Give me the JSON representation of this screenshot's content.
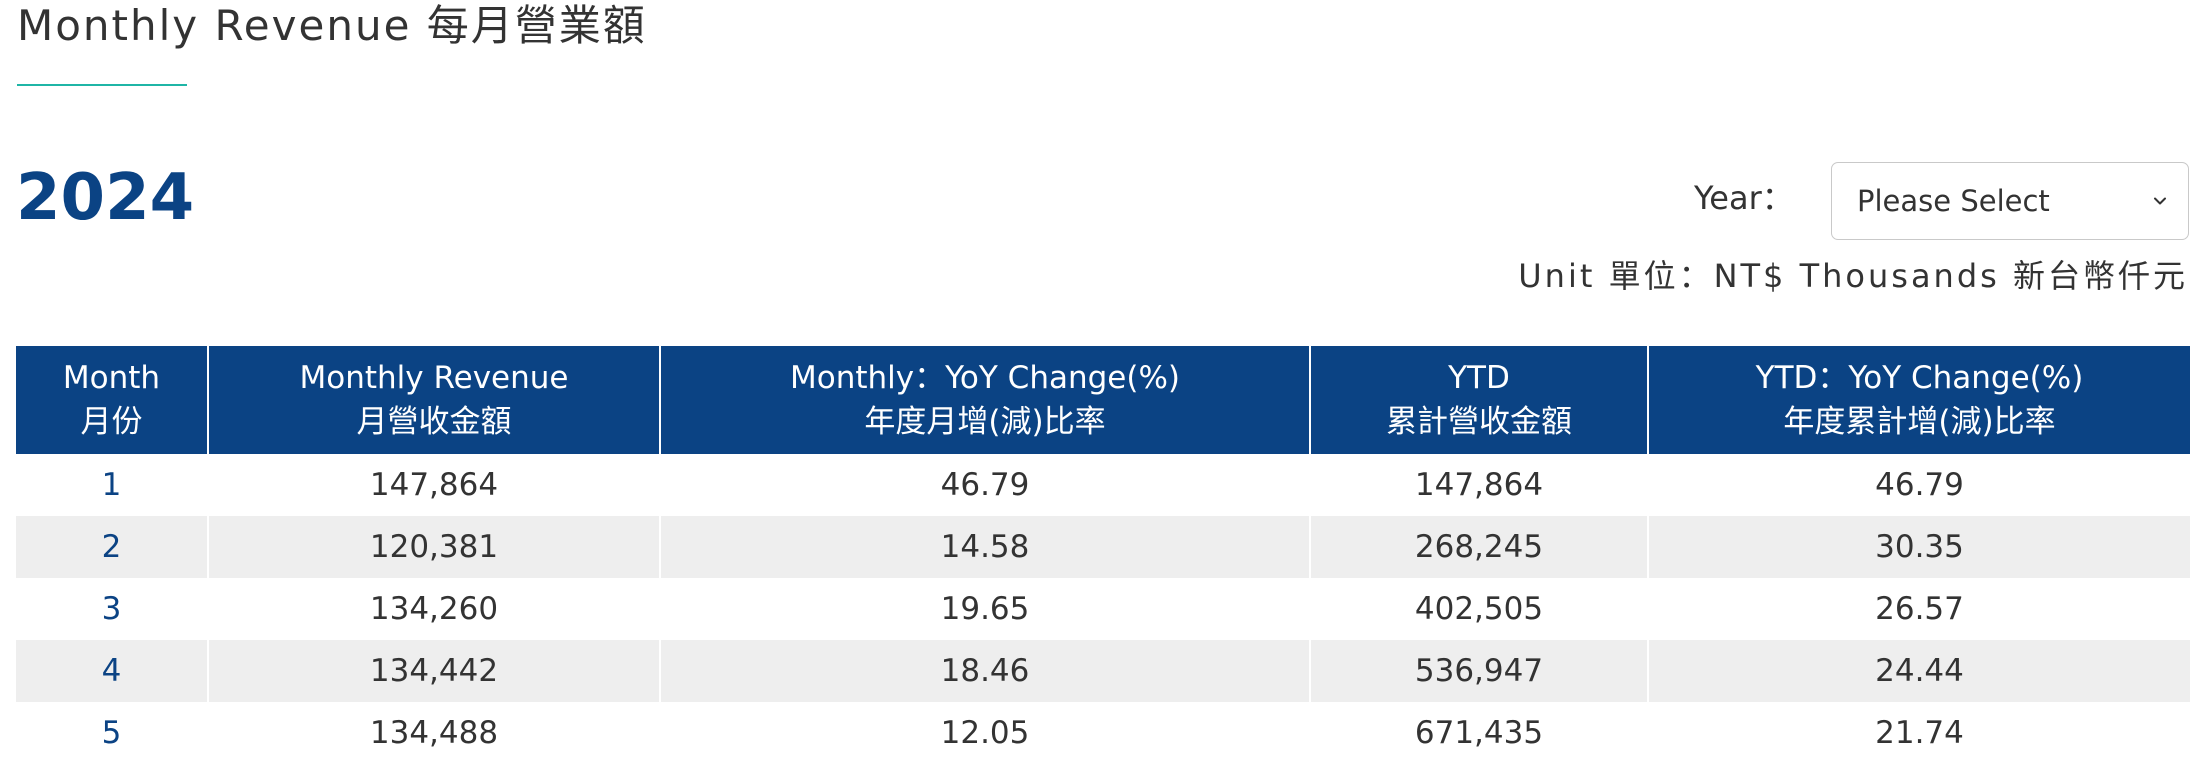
{
  "page": {
    "title": "Monthly Revenue 每月營業額",
    "year": "2024"
  },
  "filter": {
    "year_label": "Year：",
    "year_select_value": "Please Select",
    "chevron_icon": "chevron-down-icon"
  },
  "unit_note": "Unit 單位：NT$ Thousands 新台幣仟元",
  "colors": {
    "header_bg": "#0b4384",
    "accent_underline": "#1fb5a6",
    "stripe_bg": "#eeeeee",
    "year_text": "#0b4384"
  },
  "table": {
    "headers": [
      {
        "en": "Month",
        "zh": "月份"
      },
      {
        "en": "Monthly Revenue",
        "zh": "月營收金額"
      },
      {
        "en": "Monthly：YoY Change(%)",
        "zh": "年度月增(減)比率"
      },
      {
        "en": "YTD",
        "zh": "累計營收金額"
      },
      {
        "en": "YTD：YoY Change(%)",
        "zh": "年度累計增(減)比率"
      }
    ],
    "rows": [
      {
        "month": "1",
        "revenue": "147,864",
        "monthly_yoy": "46.79",
        "ytd": "147,864",
        "ytd_yoy": "46.79"
      },
      {
        "month": "2",
        "revenue": "120,381",
        "monthly_yoy": "14.58",
        "ytd": "268,245",
        "ytd_yoy": "30.35"
      },
      {
        "month": "3",
        "revenue": "134,260",
        "monthly_yoy": "19.65",
        "ytd": "402,505",
        "ytd_yoy": "26.57"
      },
      {
        "month": "4",
        "revenue": "134,442",
        "monthly_yoy": "18.46",
        "ytd": "536,947",
        "ytd_yoy": "24.44"
      },
      {
        "month": "5",
        "revenue": "134,488",
        "monthly_yoy": "12.05",
        "ytd": "671,435",
        "ytd_yoy": "21.74"
      }
    ]
  }
}
